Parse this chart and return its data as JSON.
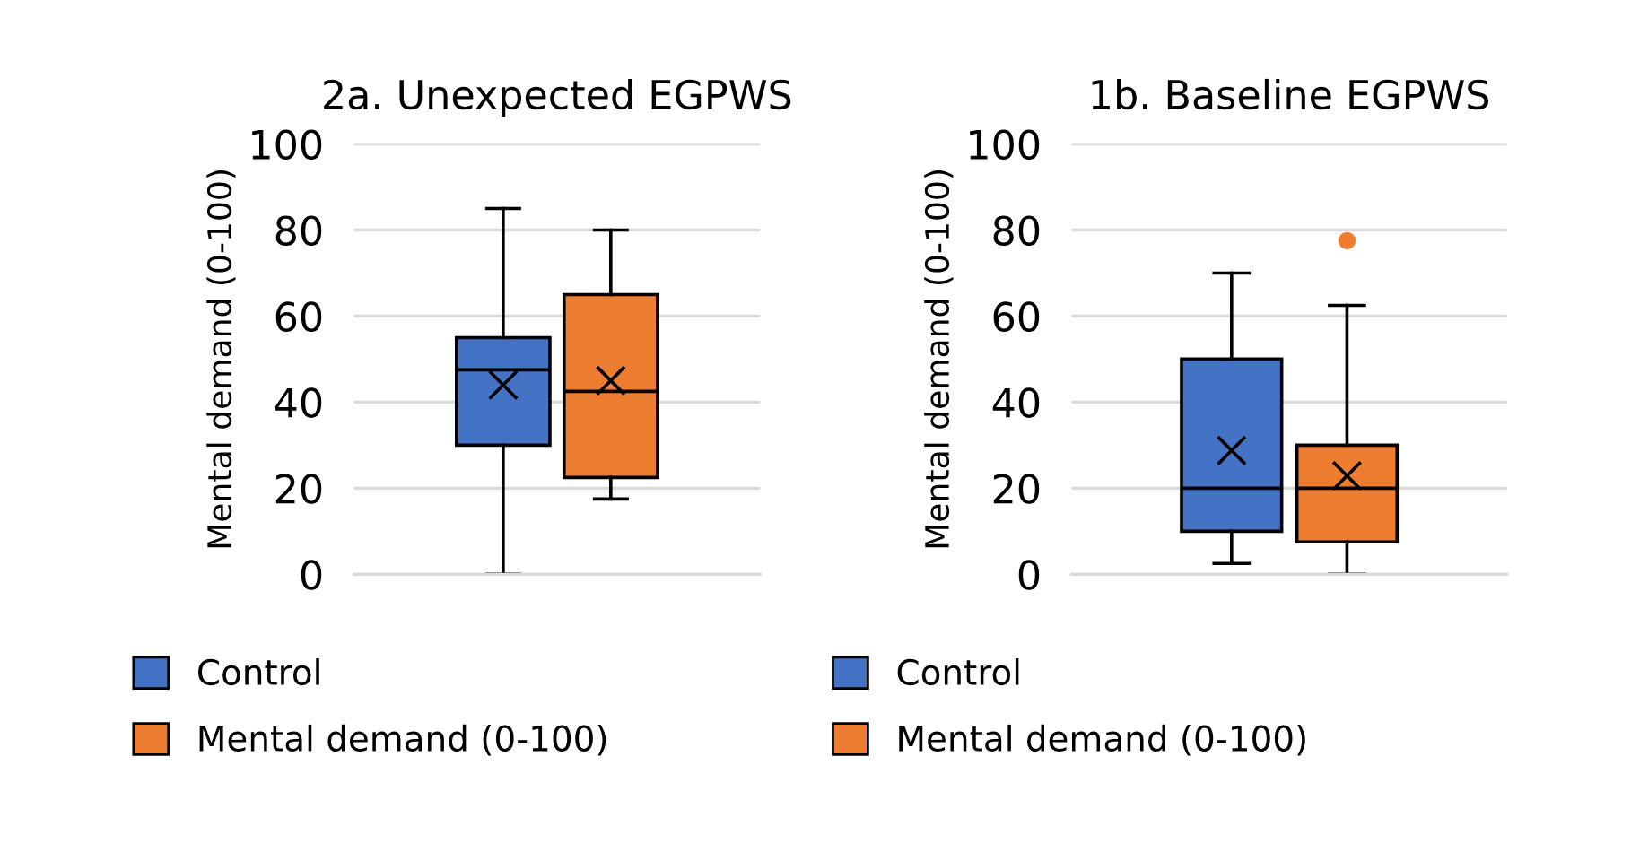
{
  "chart_data": [
    {
      "type": "box",
      "title": "2a. Unexpected EGPWS",
      "ylabel": "Mental demand (0-100)",
      "categories": [
        null
      ],
      "ylim": [
        0,
        100
      ],
      "yticks": [
        0,
        20,
        40,
        60,
        80,
        100
      ],
      "grid": "y",
      "legend": "bottom",
      "series": [
        {
          "name": "Control",
          "color": "#4472c4",
          "boxes": [
            {
              "low": 0,
              "q1": 30,
              "median": 47.5,
              "q3": 55,
              "high": 85,
              "mean": 44
            }
          ]
        },
        {
          "name": "Mental demand (0-100)",
          "color": "#ed7d31",
          "boxes": [
            {
              "low": 17.5,
              "q1": 22.5,
              "median": 42.5,
              "q3": 65,
              "high": 80,
              "mean": 45
            }
          ]
        }
      ]
    },
    {
      "type": "box",
      "title": "1b. Baseline EGPWS",
      "ylabel": "Mental demand (0-100)",
      "categories": [
        null
      ],
      "ylim": [
        0,
        100
      ],
      "yticks": [
        0,
        20,
        40,
        60,
        80,
        100
      ],
      "grid": "y",
      "legend": "bottom",
      "series": [
        {
          "name": "Control",
          "color": "#4472c4",
          "boxes": [
            {
              "low": 2.5,
              "q1": 10,
              "median": 20,
              "q3": 50,
              "high": 70,
              "mean": 28.75
            }
          ]
        },
        {
          "name": "Mental demand (0-100)",
          "color": "#ed7d31",
          "boxes": [
            {
              "low": 0,
              "q1": 7.5,
              "median": 20,
              "q3": 30,
              "high": 62.5,
              "mean": 22.9,
              "outliers": [
                77.5
              ]
            }
          ]
        }
      ]
    }
  ]
}
